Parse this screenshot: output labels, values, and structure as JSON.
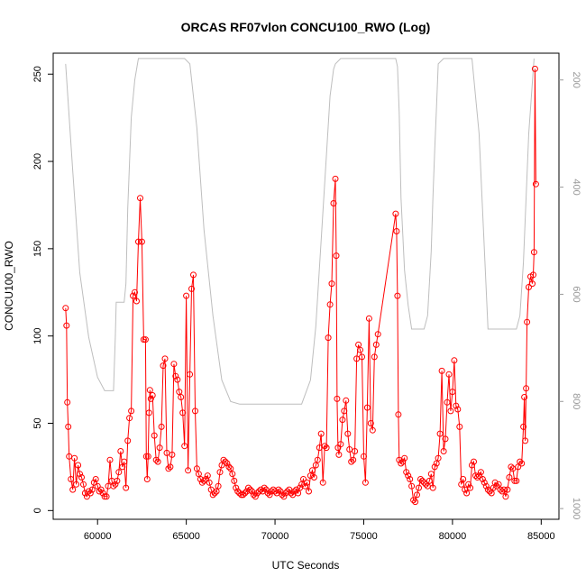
{
  "chart_data": {
    "type": "line",
    "title": "ORCAS RF07vlon CONCU100_RWO (Log)",
    "xlabel": "UTC Seconds",
    "ylabel": "CONCU100_RWO",
    "xlim": [
      57500,
      86000
    ],
    "ylim": [
      -5,
      262
    ],
    "x_ticks": [
      60000,
      65000,
      70000,
      75000,
      80000,
      85000
    ],
    "y_ticks": [
      0,
      50,
      100,
      150,
      200,
      250
    ],
    "y2_ticks": [
      200,
      400,
      600,
      800,
      1000
    ],
    "y2lim": [
      1020,
      150
    ],
    "grid": false,
    "colors": {
      "primary": "#ff0000",
      "secondary": "#bebebe"
    },
    "series": [
      {
        "style": "line+points-hollow",
        "color": "#ff0000",
        "x": [
          58200,
          58250,
          58300,
          58350,
          58400,
          58500,
          58600,
          58700,
          58800,
          58900,
          59000,
          59100,
          59200,
          59300,
          59400,
          59500,
          59600,
          59700,
          59800,
          59900,
          60000,
          60100,
          60200,
          60300,
          60400,
          60500,
          60600,
          60700,
          60800,
          60900,
          61000,
          61100,
          61200,
          61300,
          61400,
          61500,
          61600,
          61700,
          61800,
          61900,
          62000,
          62100,
          62200,
          62300,
          62400,
          62500,
          62600,
          62700,
          62750,
          62800,
          62850,
          62900,
          62950,
          63000,
          63100,
          63200,
          63300,
          63400,
          63500,
          63600,
          63700,
          63800,
          63900,
          64000,
          64100,
          64200,
          64300,
          64400,
          64500,
          64600,
          64700,
          64800,
          64900,
          65000,
          65100,
          65200,
          65300,
          65400,
          65500,
          65600,
          65700,
          65800,
          65900,
          66000,
          66100,
          66200,
          66300,
          66400,
          66500,
          66600,
          66700,
          66800,
          66900,
          67000,
          67100,
          67200,
          67300,
          67400,
          67500,
          67600,
          67700,
          67800,
          67900,
          68000,
          68100,
          68200,
          68300,
          68400,
          68500,
          68600,
          68700,
          68800,
          68900,
          69000,
          69100,
          69200,
          69300,
          69400,
          69500,
          69600,
          69700,
          69800,
          69900,
          70000,
          70100,
          70200,
          70300,
          70400,
          70500,
          70600,
          70700,
          70800,
          70900,
          71000,
          71100,
          71200,
          71300,
          71400,
          71500,
          71600,
          71700,
          71800,
          71900,
          72000,
          72100,
          72200,
          72300,
          72400,
          72500,
          72600,
          72700,
          72800,
          72900,
          73000,
          73100,
          73200,
          73300,
          73400,
          73450,
          73500,
          73550,
          73600,
          73700,
          73800,
          73900,
          74000,
          74100,
          74200,
          74300,
          74400,
          74500,
          74600,
          74700,
          74800,
          74900,
          75000,
          75100,
          75200,
          75300,
          75400,
          75500,
          75600,
          75700,
          75800,
          76800,
          76850,
          76900,
          76950,
          77000,
          77100,
          77200,
          77300,
          77400,
          77500,
          77600,
          77700,
          77800,
          77900,
          78000,
          78100,
          78200,
          78300,
          78400,
          78500,
          78600,
          78700,
          78800,
          78900,
          79000,
          79100,
          79200,
          79300,
          79400,
          79500,
          79600,
          79700,
          79800,
          79900,
          80000,
          80100,
          80200,
          80300,
          80400,
          80500,
          80600,
          80700,
          80800,
          80900,
          81000,
          81100,
          81200,
          81300,
          81400,
          81500,
          81600,
          81700,
          81800,
          81900,
          82000,
          82100,
          82200,
          82300,
          82400,
          82500,
          82600,
          82700,
          82800,
          82900,
          83000,
          83100,
          83200,
          83300,
          83400,
          83500,
          83600,
          83700,
          83800,
          83900,
          84000,
          84050,
          84100,
          84150,
          84200,
          84300,
          84400,
          84500,
          84550,
          84600,
          84650,
          84700
        ],
        "y": [
          116,
          106,
          62,
          48,
          31,
          18,
          12,
          30,
          15,
          26,
          21,
          19,
          15,
          10,
          8,
          11,
          10,
          12,
          16,
          18,
          14,
          11,
          12,
          10,
          8,
          8,
          14,
          29,
          17,
          14,
          15,
          17,
          22,
          34,
          25,
          28,
          13,
          40,
          53,
          57,
          123,
          125,
          120,
          154,
          179,
          154,
          98,
          98,
          31,
          18,
          31,
          56,
          69,
          64,
          66,
          43,
          29,
          28,
          36,
          48,
          83,
          87,
          33,
          24,
          25,
          32,
          84,
          77,
          75,
          68,
          65,
          56,
          37,
          123,
          23,
          78,
          127,
          135,
          57,
          24,
          21,
          18,
          16,
          17,
          18,
          20,
          16,
          12,
          9,
          10,
          11,
          14,
          22,
          26,
          29,
          28,
          27,
          25,
          24,
          21,
          17,
          13,
          11,
          10,
          9,
          9,
          10,
          11,
          13,
          12,
          11,
          9,
          8,
          10,
          11,
          12,
          11,
          13,
          12,
          10,
          9,
          11,
          12,
          11,
          10,
          12,
          11,
          9,
          8,
          10,
          11,
          12,
          10,
          9,
          11,
          12,
          10,
          13,
          15,
          18,
          14,
          16,
          11,
          20,
          23,
          19,
          26,
          29,
          36,
          44,
          16,
          37,
          36,
          99,
          118,
          130,
          176,
          190,
          146,
          64,
          36,
          32,
          38,
          52,
          57,
          63,
          44,
          35,
          28,
          29,
          34,
          87,
          95,
          92,
          88,
          31,
          16,
          59,
          110,
          50,
          46,
          88,
          95,
          101,
          170,
          160,
          123,
          55,
          29,
          27,
          28,
          30,
          22,
          20,
          18,
          14,
          6,
          5,
          9,
          13,
          18,
          17,
          16,
          15,
          14,
          17,
          21,
          13,
          25,
          27,
          30,
          44,
          80,
          34,
          41,
          62,
          78,
          57,
          68,
          86,
          60,
          58,
          48,
          15,
          18,
          12,
          10,
          15,
          13,
          26,
          28,
          20,
          19,
          20,
          22,
          18,
          16,
          14,
          12,
          11,
          10,
          13,
          16,
          14,
          15,
          12,
          11,
          12,
          8,
          12,
          19,
          25,
          24,
          17,
          17,
          25,
          28,
          27,
          48,
          65,
          40,
          70,
          108,
          128,
          134,
          130,
          135,
          148,
          253,
          187
        ]
      },
      {
        "style": "line",
        "color": "#bebebe",
        "axis": "right",
        "x": [
          58200,
          58600,
          59000,
          59500,
          60000,
          60400,
          60700,
          60900,
          61000,
          61050,
          61500,
          61600,
          61700,
          61900,
          62100,
          62300,
          62600,
          62700,
          62900,
          63300,
          63700,
          64000,
          64300,
          64600,
          64900,
          65200,
          65600,
          66000,
          66500,
          67000,
          67500,
          68000,
          70000,
          71000,
          71500,
          72000,
          72300,
          72600,
          72900,
          73100,
          73300,
          73400,
          73700,
          73900,
          74100,
          74400,
          74800,
          75100,
          75400,
          75700,
          76000,
          76400,
          76700,
          76800,
          76900,
          77000,
          77100,
          77300,
          77500,
          77700,
          77900,
          78400,
          78600,
          78800,
          78900,
          79000,
          79100,
          79200,
          79500,
          79800,
          80200,
          80700,
          81100,
          81500,
          82000,
          82800,
          83200,
          83400,
          83600,
          83800,
          84000,
          84300,
          84600
        ],
        "y": [
          170,
          370,
          560,
          680,
          755,
          780,
          780,
          780,
          680,
          615,
          615,
          580,
          440,
          270,
          200,
          160,
          160,
          160,
          160,
          160,
          160,
          160,
          160,
          160,
          160,
          170,
          290,
          480,
          640,
          760,
          800,
          805,
          805,
          805,
          805,
          760,
          660,
          500,
          340,
          230,
          180,
          170,
          160,
          160,
          160,
          160,
          160,
          160,
          160,
          160,
          160,
          160,
          160,
          160,
          175,
          260,
          420,
          555,
          620,
          665,
          665,
          665,
          640,
          520,
          420,
          330,
          250,
          170,
          160,
          160,
          160,
          160,
          160,
          300,
          665,
          665,
          665,
          665,
          665,
          640,
          540,
          300,
          160
        ]
      }
    ]
  }
}
